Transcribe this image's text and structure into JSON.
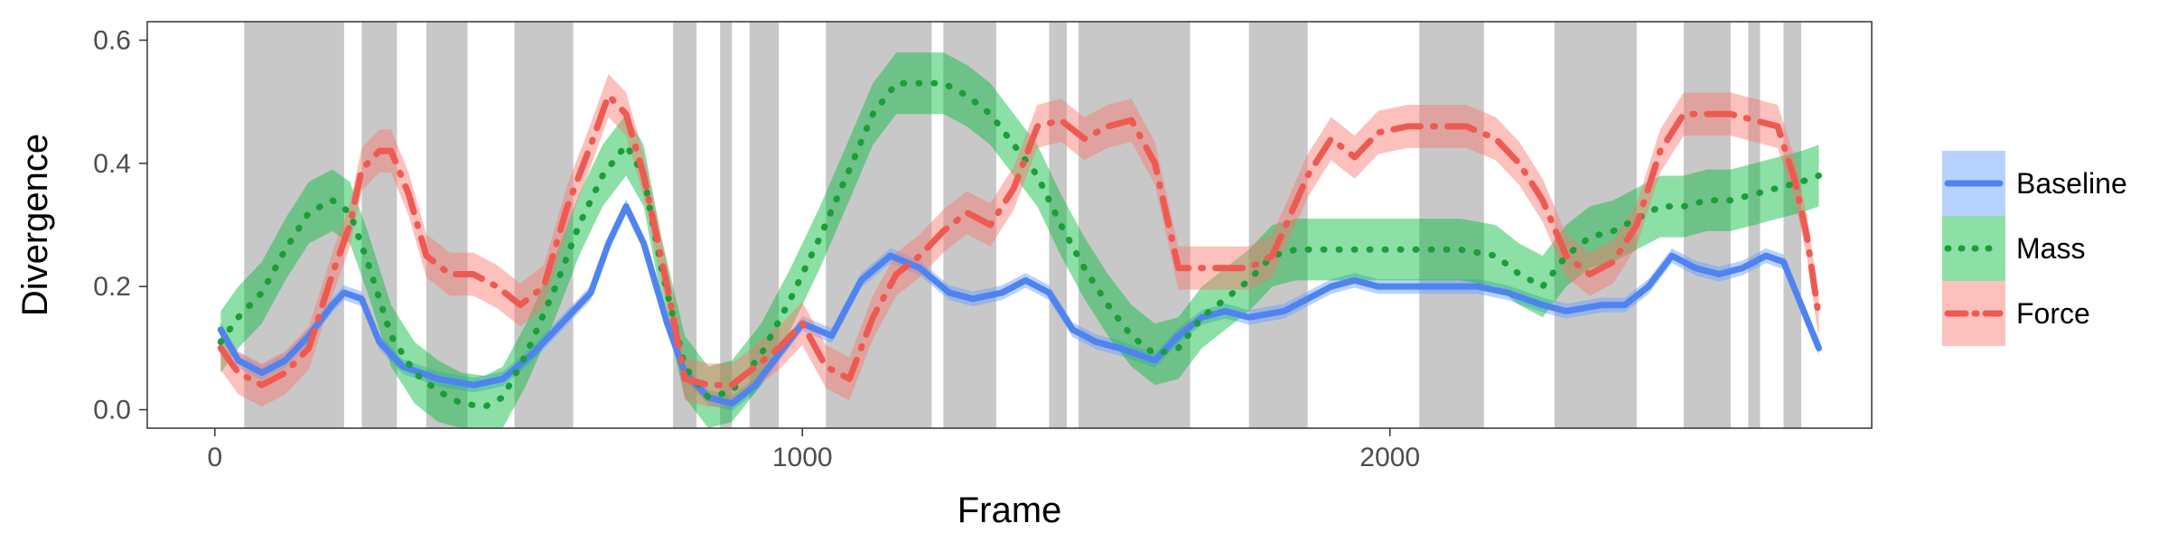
{
  "chart_data": {
    "type": "line",
    "title": "",
    "xlabel": "Frame",
    "ylabel": "Divergence",
    "xlim": [
      -115,
      2820
    ],
    "ylim": [
      -0.03,
      0.63
    ],
    "x_ticks": [
      0,
      1000,
      2000
    ],
    "y_ticks": [
      0.0,
      0.2,
      0.4,
      0.6
    ],
    "x_tick_labels": [
      "0",
      "1000",
      "2000"
    ],
    "y_tick_labels": [
      "0.0",
      "0.2",
      "0.4",
      "0.6"
    ],
    "grid": false,
    "legend_position": "right",
    "shaded_intervals": [
      [
        50,
        220
      ],
      [
        250,
        310
      ],
      [
        360,
        430
      ],
      [
        510,
        610
      ],
      [
        780,
        820
      ],
      [
        860,
        880
      ],
      [
        910,
        960
      ],
      [
        1040,
        1220
      ],
      [
        1240,
        1330
      ],
      [
        1420,
        1450
      ],
      [
        1470,
        1660
      ],
      [
        1760,
        1860
      ],
      [
        2050,
        2160
      ],
      [
        2280,
        2420
      ],
      [
        2500,
        2580
      ],
      [
        2610,
        2630
      ],
      [
        2670,
        2700
      ]
    ],
    "series": [
      {
        "name": "Baseline",
        "color": "#619cff",
        "line_color": "#4f83f0",
        "dash": "solid",
        "band": 0.012,
        "points": [
          [
            10,
            0.13
          ],
          [
            40,
            0.08
          ],
          [
            80,
            0.06
          ],
          [
            120,
            0.08
          ],
          [
            160,
            0.12
          ],
          [
            200,
            0.17
          ],
          [
            220,
            0.19
          ],
          [
            250,
            0.18
          ],
          [
            280,
            0.11
          ],
          [
            320,
            0.07
          ],
          [
            380,
            0.05
          ],
          [
            440,
            0.04
          ],
          [
            490,
            0.05
          ],
          [
            540,
            0.09
          ],
          [
            600,
            0.15
          ],
          [
            640,
            0.19
          ],
          [
            670,
            0.27
          ],
          [
            700,
            0.33
          ],
          [
            730,
            0.27
          ],
          [
            770,
            0.14
          ],
          [
            800,
            0.06
          ],
          [
            840,
            0.02
          ],
          [
            880,
            0.01
          ],
          [
            920,
            0.04
          ],
          [
            960,
            0.09
          ],
          [
            1000,
            0.14
          ],
          [
            1050,
            0.12
          ],
          [
            1100,
            0.21
          ],
          [
            1150,
            0.25
          ],
          [
            1200,
            0.23
          ],
          [
            1250,
            0.19
          ],
          [
            1290,
            0.18
          ],
          [
            1340,
            0.19
          ],
          [
            1380,
            0.21
          ],
          [
            1420,
            0.19
          ],
          [
            1460,
            0.13
          ],
          [
            1500,
            0.11
          ],
          [
            1540,
            0.1
          ],
          [
            1600,
            0.08
          ],
          [
            1640,
            0.12
          ],
          [
            1680,
            0.15
          ],
          [
            1720,
            0.16
          ],
          [
            1760,
            0.15
          ],
          [
            1820,
            0.16
          ],
          [
            1860,
            0.18
          ],
          [
            1900,
            0.2
          ],
          [
            1940,
            0.21
          ],
          [
            1980,
            0.2
          ],
          [
            2040,
            0.2
          ],
          [
            2100,
            0.2
          ],
          [
            2150,
            0.2
          ],
          [
            2200,
            0.19
          ],
          [
            2260,
            0.17
          ],
          [
            2300,
            0.16
          ],
          [
            2360,
            0.17
          ],
          [
            2400,
            0.17
          ],
          [
            2440,
            0.2
          ],
          [
            2480,
            0.25
          ],
          [
            2520,
            0.23
          ],
          [
            2560,
            0.22
          ],
          [
            2600,
            0.23
          ],
          [
            2640,
            0.25
          ],
          [
            2670,
            0.24
          ],
          [
            2700,
            0.17
          ],
          [
            2730,
            0.1
          ]
        ]
      },
      {
        "name": "Mass",
        "color": "#00ba38",
        "line_color": "#1a9e3a",
        "dash": "dotted",
        "band": 0.05,
        "points": [
          [
            10,
            0.11
          ],
          [
            40,
            0.15
          ],
          [
            80,
            0.19
          ],
          [
            120,
            0.26
          ],
          [
            160,
            0.32
          ],
          [
            200,
            0.34
          ],
          [
            230,
            0.32
          ],
          [
            260,
            0.24
          ],
          [
            300,
            0.12
          ],
          [
            340,
            0.06
          ],
          [
            380,
            0.03
          ],
          [
            420,
            0.01
          ],
          [
            460,
            0.005
          ],
          [
            490,
            0.02
          ],
          [
            530,
            0.09
          ],
          [
            580,
            0.2
          ],
          [
            620,
            0.3
          ],
          [
            660,
            0.38
          ],
          [
            700,
            0.43
          ],
          [
            730,
            0.38
          ],
          [
            760,
            0.23
          ],
          [
            800,
            0.07
          ],
          [
            840,
            0.02
          ],
          [
            880,
            0.03
          ],
          [
            930,
            0.09
          ],
          [
            980,
            0.18
          ],
          [
            1030,
            0.28
          ],
          [
            1080,
            0.39
          ],
          [
            1120,
            0.48
          ],
          [
            1160,
            0.53
          ],
          [
            1200,
            0.53
          ],
          [
            1240,
            0.53
          ],
          [
            1280,
            0.51
          ],
          [
            1320,
            0.48
          ],
          [
            1360,
            0.43
          ],
          [
            1400,
            0.38
          ],
          [
            1440,
            0.3
          ],
          [
            1480,
            0.23
          ],
          [
            1520,
            0.17
          ],
          [
            1560,
            0.12
          ],
          [
            1600,
            0.09
          ],
          [
            1640,
            0.1
          ],
          [
            1680,
            0.15
          ],
          [
            1720,
            0.18
          ],
          [
            1760,
            0.21
          ],
          [
            1800,
            0.25
          ],
          [
            1840,
            0.26
          ],
          [
            1880,
            0.26
          ],
          [
            1940,
            0.26
          ],
          [
            2000,
            0.26
          ],
          [
            2060,
            0.26
          ],
          [
            2120,
            0.26
          ],
          [
            2180,
            0.25
          ],
          [
            2220,
            0.22
          ],
          [
            2260,
            0.2
          ],
          [
            2300,
            0.25
          ],
          [
            2340,
            0.28
          ],
          [
            2380,
            0.29
          ],
          [
            2420,
            0.31
          ],
          [
            2460,
            0.33
          ],
          [
            2500,
            0.33
          ],
          [
            2540,
            0.34
          ],
          [
            2580,
            0.34
          ],
          [
            2620,
            0.35
          ],
          [
            2660,
            0.36
          ],
          [
            2700,
            0.37
          ],
          [
            2730,
            0.38
          ]
        ]
      },
      {
        "name": "Force",
        "color": "#f8766d",
        "line_color": "#ee5a52",
        "dash": "dashdot",
        "band": 0.035,
        "points": [
          [
            10,
            0.1
          ],
          [
            40,
            0.06
          ],
          [
            80,
            0.04
          ],
          [
            120,
            0.06
          ],
          [
            160,
            0.1
          ],
          [
            200,
            0.22
          ],
          [
            230,
            0.3
          ],
          [
            250,
            0.39
          ],
          [
            280,
            0.42
          ],
          [
            300,
            0.42
          ],
          [
            330,
            0.35
          ],
          [
            360,
            0.25
          ],
          [
            400,
            0.22
          ],
          [
            440,
            0.22
          ],
          [
            480,
            0.2
          ],
          [
            520,
            0.17
          ],
          [
            560,
            0.2
          ],
          [
            600,
            0.33
          ],
          [
            640,
            0.43
          ],
          [
            670,
            0.51
          ],
          [
            700,
            0.48
          ],
          [
            730,
            0.38
          ],
          [
            770,
            0.2
          ],
          [
            800,
            0.05
          ],
          [
            840,
            0.04
          ],
          [
            880,
            0.04
          ],
          [
            920,
            0.07
          ],
          [
            960,
            0.1
          ],
          [
            1000,
            0.14
          ],
          [
            1040,
            0.07
          ],
          [
            1080,
            0.05
          ],
          [
            1120,
            0.15
          ],
          [
            1160,
            0.22
          ],
          [
            1200,
            0.25
          ],
          [
            1240,
            0.29
          ],
          [
            1280,
            0.32
          ],
          [
            1320,
            0.3
          ],
          [
            1360,
            0.36
          ],
          [
            1400,
            0.46
          ],
          [
            1440,
            0.47
          ],
          [
            1480,
            0.44
          ],
          [
            1520,
            0.46
          ],
          [
            1560,
            0.47
          ],
          [
            1600,
            0.4
          ],
          [
            1640,
            0.23
          ],
          [
            1680,
            0.23
          ],
          [
            1720,
            0.23
          ],
          [
            1760,
            0.23
          ],
          [
            1800,
            0.25
          ],
          [
            1860,
            0.38
          ],
          [
            1900,
            0.44
          ],
          [
            1940,
            0.41
          ],
          [
            1980,
            0.45
          ],
          [
            2030,
            0.46
          ],
          [
            2080,
            0.46
          ],
          [
            2130,
            0.46
          ],
          [
            2180,
            0.44
          ],
          [
            2220,
            0.4
          ],
          [
            2260,
            0.34
          ],
          [
            2300,
            0.25
          ],
          [
            2340,
            0.22
          ],
          [
            2380,
            0.24
          ],
          [
            2420,
            0.3
          ],
          [
            2460,
            0.42
          ],
          [
            2500,
            0.48
          ],
          [
            2540,
            0.48
          ],
          [
            2580,
            0.48
          ],
          [
            2620,
            0.47
          ],
          [
            2660,
            0.46
          ],
          [
            2690,
            0.37
          ],
          [
            2710,
            0.28
          ],
          [
            2730,
            0.15
          ]
        ]
      }
    ]
  }
}
